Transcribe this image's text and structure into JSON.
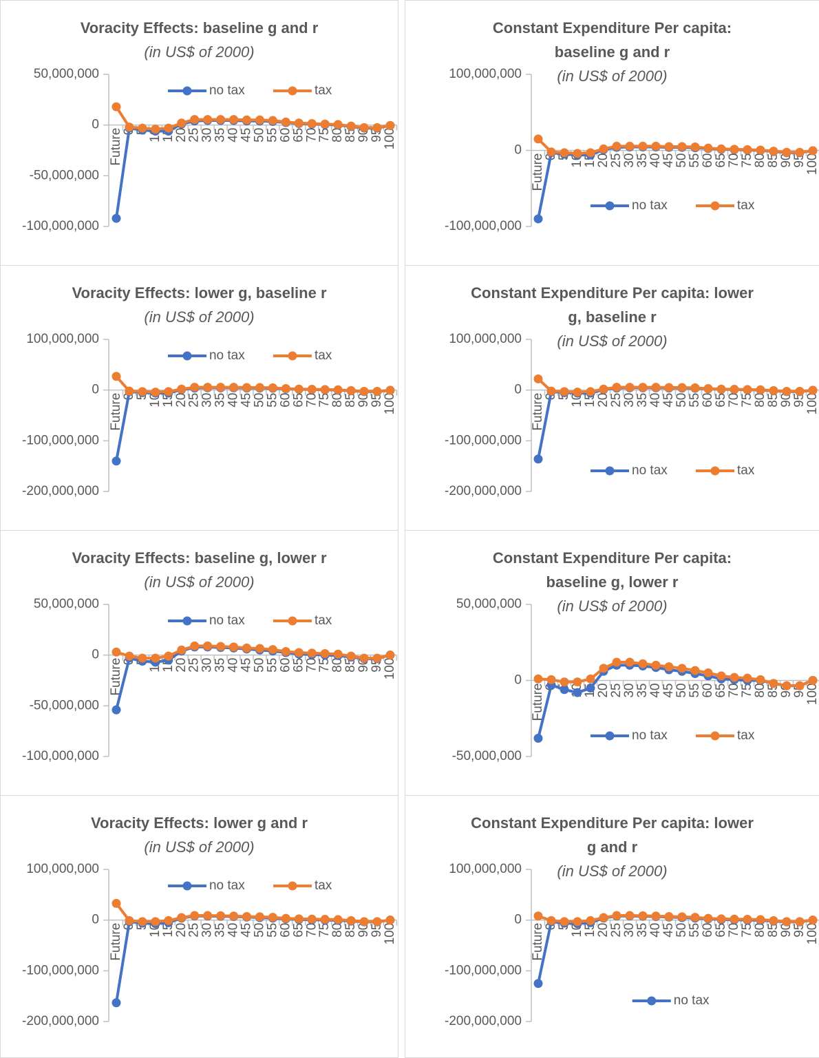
{
  "chart_data": [
    {
      "type": "line",
      "title": "Voracity Effects: baseline g and r",
      "subtitle": "(in US$ of 2000)",
      "legend": "top",
      "categories": [
        "Future",
        "0",
        "5",
        "10",
        "15",
        "20",
        "25",
        "30",
        "35",
        "40",
        "45",
        "50",
        "55",
        "60",
        "65",
        "70",
        "75",
        "80",
        "85",
        "90",
        "95",
        "100"
      ],
      "ylim": [
        -100000000,
        50000000
      ],
      "yticks": [
        {
          "value": 50000000,
          "label": "50,000,000"
        },
        0,
        {
          "value": -50000000,
          "label": "-50,000,000"
        },
        {
          "value": -100000000,
          "label": "-100,000,000"
        }
      ],
      "series": [
        {
          "name": "no tax",
          "color": "#4472c4",
          "values": [
            -92000000,
            -3000000,
            -5000000,
            -6000000,
            -6000000,
            1000000,
            4000000,
            4500000,
            4500000,
            4500000,
            4000000,
            4000000,
            3500000,
            2500000,
            1500000,
            1000000,
            500000,
            0,
            -1500000,
            -3000000,
            -3000000,
            -500000
          ]
        },
        {
          "name": "tax",
          "color": "#ed7d31",
          "values": [
            18000000,
            -2000000,
            -3000000,
            -4000000,
            -3000000,
            2000000,
            5500000,
            5500000,
            5500000,
            5500000,
            5000000,
            5000000,
            4500000,
            3000000,
            2000000,
            1500000,
            1000000,
            500000,
            -1000000,
            -2500000,
            -2500000,
            -500000
          ]
        }
      ]
    },
    {
      "type": "line",
      "title": "Constant Expenditure Per capita: baseline g and r",
      "subtitle": "(in US$ of 2000)",
      "legend": "bottom",
      "categories": [
        "Future",
        "0",
        "5",
        "10",
        "15",
        "20",
        "25",
        "30",
        "35",
        "40",
        "45",
        "50",
        "55",
        "60",
        "65",
        "70",
        "75",
        "80",
        "85",
        "90",
        "95",
        "100"
      ],
      "ylim": [
        -100000000,
        100000000
      ],
      "yticks": [
        {
          "value": 100000000,
          "label": "100,000,000"
        },
        0,
        {
          "value": -100000000,
          "label": "-100,000,000"
        }
      ],
      "series": [
        {
          "name": "no tax",
          "color": "#4472c4",
          "values": [
            -90000000,
            -3000000,
            -5000000,
            -6000000,
            -6000000,
            1000000,
            4000000,
            4500000,
            4500000,
            4500000,
            4000000,
            4000000,
            3500000,
            2500000,
            1500000,
            1000000,
            500000,
            0,
            -1500000,
            -3000000,
            -3000000,
            -500000
          ]
        },
        {
          "name": "tax",
          "color": "#ed7d31",
          "values": [
            15000000,
            -2000000,
            -3000000,
            -4000000,
            -3000000,
            2000000,
            5500000,
            5500000,
            5500000,
            5500000,
            5000000,
            5000000,
            4500000,
            3000000,
            2000000,
            1500000,
            1000000,
            500000,
            -1000000,
            -2500000,
            -2500000,
            -500000
          ]
        }
      ]
    },
    {
      "type": "line",
      "title": "Voracity Effects: lower g, baseline r",
      "subtitle": "(in US$ of 2000)",
      "legend": "top",
      "categories": [
        "Future",
        "0",
        "5",
        "10",
        "15",
        "20",
        "25",
        "30",
        "35",
        "40",
        "45",
        "50",
        "55",
        "60",
        "65",
        "70",
        "75",
        "80",
        "85",
        "90",
        "95",
        "100"
      ],
      "ylim": [
        -200000000,
        100000000
      ],
      "yticks": [
        {
          "value": 100000000,
          "label": "100,000,000"
        },
        0,
        {
          "value": -100000000,
          "label": "-100,000,000"
        },
        {
          "value": -200000000,
          "label": "-200,000,000"
        }
      ],
      "series": [
        {
          "name": "no tax",
          "color": "#4472c4",
          "values": [
            -140000000,
            -3000000,
            -5000000,
            -6000000,
            -6000000,
            1000000,
            4000000,
            4500000,
            4500000,
            4500000,
            4000000,
            4000000,
            3500000,
            2500000,
            1500000,
            1000000,
            500000,
            0,
            -1500000,
            -3000000,
            -3000000,
            -500000
          ]
        },
        {
          "name": "tax",
          "color": "#ed7d31",
          "values": [
            27000000,
            -2000000,
            -3000000,
            -4000000,
            -3000000,
            2000000,
            5500000,
            5500000,
            5500000,
            5500000,
            5000000,
            5000000,
            4500000,
            3000000,
            2000000,
            1500000,
            1000000,
            500000,
            -1000000,
            -2500000,
            -2500000,
            -500000
          ]
        }
      ]
    },
    {
      "type": "line",
      "title": "Constant Expenditure Per capita: lower g, baseline r",
      "subtitle": "(in US$ of 2000)",
      "legend": "bottom",
      "categories": [
        "Future",
        "0",
        "5",
        "10",
        "15",
        "20",
        "25",
        "30",
        "35",
        "40",
        "45",
        "50",
        "55",
        "60",
        "65",
        "70",
        "75",
        "80",
        "85",
        "90",
        "95",
        "100"
      ],
      "ylim": [
        -200000000,
        100000000
      ],
      "yticks": [
        {
          "value": 100000000,
          "label": "100,000,000"
        },
        0,
        {
          "value": -100000000,
          "label": "-100,000,000"
        },
        {
          "value": -200000000,
          "label": "-200,000,000"
        }
      ],
      "series": [
        {
          "name": "no tax",
          "color": "#4472c4",
          "values": [
            -136000000,
            -3000000,
            -5000000,
            -6000000,
            -6000000,
            1000000,
            4000000,
            4500000,
            4500000,
            4500000,
            4000000,
            4000000,
            3500000,
            2500000,
            1500000,
            1000000,
            500000,
            0,
            -1500000,
            -3000000,
            -3000000,
            -500000
          ]
        },
        {
          "name": "tax",
          "color": "#ed7d31",
          "values": [
            22000000,
            -2000000,
            -3000000,
            -4000000,
            -3000000,
            2000000,
            5500000,
            5500000,
            5500000,
            5500000,
            5000000,
            5000000,
            4500000,
            3000000,
            2000000,
            1500000,
            1000000,
            500000,
            -1000000,
            -2500000,
            -2500000,
            -500000
          ]
        }
      ]
    },
    {
      "type": "line",
      "title": "Voracity Effects: baseline g, lower r",
      "subtitle": "(in US$ of 2000)",
      "legend": "top",
      "categories": [
        "Future",
        "0",
        "5",
        "10",
        "15",
        "20",
        "25",
        "30",
        "35",
        "40",
        "45",
        "50",
        "55",
        "60",
        "65",
        "70",
        "75",
        "80",
        "85",
        "90",
        "95",
        "100"
      ],
      "ylim": [
        -100000000,
        50000000
      ],
      "yticks": [
        {
          "value": 50000000,
          "label": "50,000,000"
        },
        0,
        {
          "value": -50000000,
          "label": "-50,000,000"
        },
        {
          "value": -100000000,
          "label": "-100,000,000"
        }
      ],
      "series": [
        {
          "name": "no tax",
          "color": "#4472c4",
          "values": [
            -54000000,
            -3000000,
            -6000000,
            -7000000,
            -5000000,
            4000000,
            8000000,
            8000000,
            7500000,
            7000000,
            6000000,
            5000000,
            4000000,
            2500000,
            1000000,
            500000,
            0,
            -500000,
            -2000000,
            -3500000,
            -3500000,
            0
          ]
        },
        {
          "name": "tax",
          "color": "#ed7d31",
          "values": [
            3000000,
            -1000000,
            -3000000,
            -3000000,
            -1000000,
            5000000,
            9000000,
            9000000,
            8500000,
            8000000,
            7000000,
            6500000,
            5500000,
            3500000,
            2500000,
            2000000,
            1500000,
            1000000,
            -1000000,
            -3000000,
            -3000000,
            0
          ]
        }
      ]
    },
    {
      "type": "line",
      "title": "Constant Expenditure Per capita: baseline g, lower r",
      "subtitle": "(in US$ of 2000)",
      "legend": "bottom",
      "categories": [
        "Future",
        "0",
        "5",
        "10",
        "15",
        "20",
        "25",
        "30",
        "35",
        "40",
        "45",
        "50",
        "55",
        "60",
        "65",
        "70",
        "75",
        "80",
        "85",
        "90",
        "95",
        "100"
      ],
      "ylim": [
        -50000000,
        50000000
      ],
      "yticks": [
        {
          "value": 50000000,
          "label": "50,000,000"
        },
        0,
        {
          "value": -50000000,
          "label": "-50,000,000"
        }
      ],
      "series": [
        {
          "name": "no tax",
          "color": "#4472c4",
          "values": [
            -38000000,
            -3000000,
            -6000000,
            -8000000,
            -5000000,
            6000000,
            10000000,
            10000000,
            9500000,
            8500000,
            7000000,
            6000000,
            4500000,
            3000000,
            1000000,
            500000,
            0,
            0,
            -2000000,
            -3500000,
            -3500000,
            0
          ]
        },
        {
          "name": "tax",
          "color": "#ed7d31",
          "values": [
            1000000,
            500000,
            -1000000,
            -1000000,
            1000000,
            8000000,
            12000000,
            12000000,
            11000000,
            10000000,
            9000000,
            8000000,
            6500000,
            5000000,
            3000000,
            2000000,
            1500000,
            500000,
            -2000000,
            -3500000,
            -3500000,
            0
          ]
        }
      ]
    },
    {
      "type": "line",
      "title": "Voracity Effects: lower g and r",
      "subtitle": "(in US$ of 2000)",
      "legend": "top",
      "categories": [
        "Future",
        "0",
        "5",
        "10",
        "15",
        "20",
        "25",
        "30",
        "35",
        "40",
        "45",
        "50",
        "55",
        "60",
        "65",
        "70",
        "75",
        "80",
        "85",
        "90",
        "95",
        "100"
      ],
      "ylim": [
        -200000000,
        100000000
      ],
      "yticks": [
        {
          "value": 100000000,
          "label": "100,000,000"
        },
        0,
        {
          "value": -100000000,
          "label": "-100,000,000"
        },
        {
          "value": -200000000,
          "label": "-200,000,000"
        }
      ],
      "series": [
        {
          "name": "no tax",
          "color": "#4472c4",
          "values": [
            -163000000,
            -3000000,
            -6000000,
            -7000000,
            -5000000,
            4000000,
            8000000,
            8000000,
            7500000,
            7000000,
            6000000,
            5000000,
            4000000,
            2500000,
            1000000,
            500000,
            0,
            -500000,
            -2000000,
            -3500000,
            -3500000,
            0
          ]
        },
        {
          "name": "tax",
          "color": "#ed7d31",
          "values": [
            33000000,
            -1000000,
            -3000000,
            -3000000,
            -1000000,
            5000000,
            9000000,
            9000000,
            8500000,
            8000000,
            7000000,
            6500000,
            5500000,
            3500000,
            2500000,
            2000000,
            1500000,
            1000000,
            -1000000,
            -3000000,
            -3000000,
            0
          ]
        }
      ]
    },
    {
      "type": "line",
      "title": "Constant Expenditure Per capita: lower g and r",
      "subtitle": "(in US$ of 2000)",
      "legend": "bottom",
      "categories": [
        "Future",
        "0",
        "5",
        "10",
        "15",
        "20",
        "25",
        "30",
        "35",
        "40",
        "45",
        "50",
        "55",
        "60",
        "65",
        "70",
        "75",
        "80",
        "85",
        "90",
        "95",
        "100"
      ],
      "ylim": [
        -200000000,
        100000000
      ],
      "yticks": [
        {
          "value": 100000000,
          "label": "100,000,000"
        },
        0,
        {
          "value": -100000000,
          "label": "-100,000,000"
        },
        {
          "value": -200000000,
          "label": "-200,000,000"
        }
      ],
      "series": [
        {
          "name": "no tax",
          "color": "#4472c4",
          "values": [
            -125000000,
            -3000000,
            -6000000,
            -7000000,
            -5000000,
            4000000,
            8000000,
            8000000,
            7500000,
            7000000,
            6000000,
            5000000,
            4000000,
            2500000,
            1000000,
            500000,
            0,
            -500000,
            -2000000,
            -3500000,
            -3500000,
            0
          ]
        },
        {
          "color": "#ed7d31",
          "values": [
            8000000,
            -1000000,
            -3000000,
            -3000000,
            -1000000,
            5000000,
            9000000,
            9000000,
            8500000,
            8000000,
            7000000,
            6500000,
            5500000,
            3500000,
            2500000,
            2000000,
            1500000,
            1000000,
            -1000000,
            -3000000,
            -3000000,
            0
          ]
        }
      ]
    }
  ]
}
